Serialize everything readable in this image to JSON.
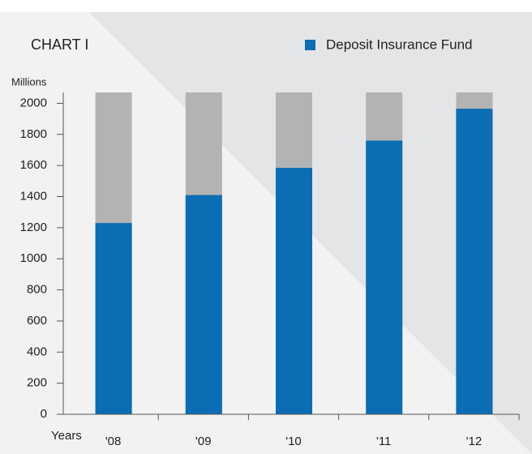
{
  "chart_data": {
    "type": "bar",
    "title": "CHART I",
    "y_label": "Millions",
    "x_label": "Years",
    "categories": [
      "'08",
      "'09",
      "'10",
      "'11",
      "'12"
    ],
    "series": [
      {
        "name": "Deposit Insurance Fund",
        "color": "#0b6db3",
        "values": [
          1230,
          1410,
          1585,
          1760,
          1965
        ]
      }
    ],
    "ylim": [
      0,
      2070
    ],
    "yticks": [
      0,
      200,
      400,
      600,
      800,
      1000,
      1200,
      1400,
      1600,
      1800,
      2000
    ],
    "background_bar_color": "#b3b3b4"
  }
}
